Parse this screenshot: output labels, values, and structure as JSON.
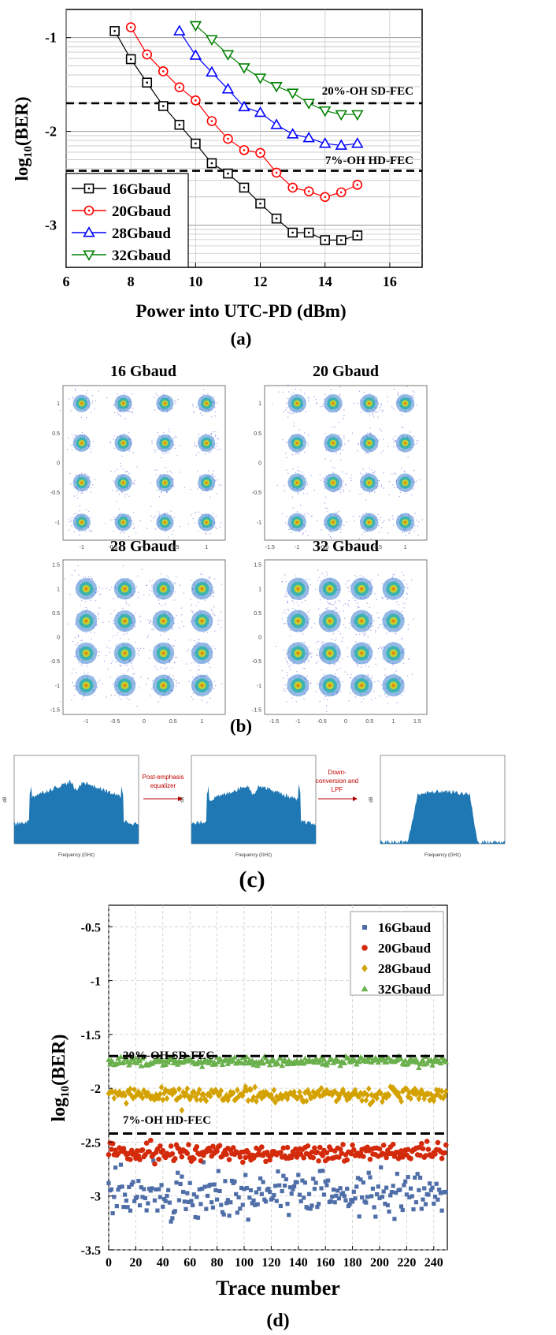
{
  "figure_labels": {
    "a": "(a)",
    "b": "(b)",
    "c": "(c)",
    "d": "(d)"
  },
  "colors": {
    "16Gbaud": "#000000",
    "20Gbaud": "#ff0000",
    "28Gbaud": "#0000ff",
    "32Gbaud": "#008000",
    "d16": "#4f6ea8",
    "d20": "#d42a0c",
    "d28": "#d4a200",
    "d32": "#6ab04c",
    "spectrum": "#1f77b4"
  },
  "chart_data": [
    {
      "id": "a",
      "type": "line",
      "xlabel": "Power into UTC-PD (dBm)",
      "ylabel": "log10(BER)",
      "xlim": [
        6,
        17
      ],
      "ylim": [
        -3.45,
        -0.7
      ],
      "xticks": [
        "6",
        "8",
        "10",
        "12",
        "14",
        "16"
      ],
      "yticks": [
        "-1",
        "-2",
        "-3"
      ],
      "grid": true,
      "legend_position": "bottom-left",
      "thresholds": [
        {
          "label": "20%-OH SD-FEC",
          "y": -1.7
        },
        {
          "label": "7%-OH HD-FEC",
          "y": -2.42
        }
      ],
      "series": [
        {
          "name": "16Gbaud",
          "marker": "square",
          "x": [
            7.5,
            8,
            8.5,
            9,
            9.5,
            10,
            10.5,
            11,
            11.5,
            12,
            12.5,
            13,
            13.5,
            14,
            14.5,
            15
          ],
          "values": [
            -0.93,
            -1.23,
            -1.48,
            -1.73,
            -1.93,
            -2.13,
            -2.34,
            -2.45,
            -2.6,
            -2.77,
            -2.93,
            -3.08,
            -3.08,
            -3.16,
            -3.16,
            -3.11
          ]
        },
        {
          "name": "20Gbaud",
          "marker": "circle",
          "x": [
            8,
            8.5,
            9,
            9.5,
            10,
            10.5,
            11,
            11.5,
            12,
            12.5,
            13,
            13.5,
            14,
            14.5,
            15
          ],
          "values": [
            -0.89,
            -1.18,
            -1.36,
            -1.53,
            -1.67,
            -1.89,
            -2.08,
            -2.2,
            -2.23,
            -2.44,
            -2.6,
            -2.64,
            -2.7,
            -2.65,
            -2.57
          ]
        },
        {
          "name": "28Gbaud",
          "marker": "triangle-up",
          "x": [
            9.5,
            10,
            10.5,
            11,
            11.5,
            12,
            12.5,
            13,
            13.5,
            14,
            14.5,
            15
          ],
          "values": [
            -0.93,
            -1.19,
            -1.37,
            -1.55,
            -1.74,
            -1.8,
            -1.93,
            -2.03,
            -2.07,
            -2.13,
            -2.15,
            -2.13
          ]
        },
        {
          "name": "32Gbaud",
          "marker": "triangle-down",
          "x": [
            10,
            10.5,
            11,
            11.5,
            12,
            12.5,
            13,
            13.5,
            14,
            14.5,
            15
          ],
          "values": [
            -0.87,
            -1.02,
            -1.18,
            -1.32,
            -1.43,
            -1.52,
            -1.59,
            -1.7,
            -1.78,
            -1.82,
            -1.82
          ]
        }
      ]
    },
    {
      "id": "d",
      "type": "scatter",
      "xlabel": "Trace number",
      "ylabel": "log10(BER)",
      "xlim": [
        0,
        250
      ],
      "ylim": [
        -3.5,
        -0.3
      ],
      "xticks": [
        "0",
        "20",
        "40",
        "60",
        "80",
        "100",
        "120",
        "140",
        "160",
        "180",
        "200",
        "220",
        "240"
      ],
      "yticks": [
        "-0.5",
        "-1",
        "-1.5",
        "-2",
        "-2.5",
        "-3",
        "-3.5"
      ],
      "grid": true,
      "legend_position": "top-right",
      "thresholds": [
        {
          "label": "20%-OH SD-FEC",
          "y": -1.7
        },
        {
          "label": "7%-OH HD-FEC",
          "y": -2.42
        }
      ],
      "series": [
        {
          "name": "16Gbaud",
          "marker": "square",
          "mean": -2.98,
          "spread": 0.11,
          "count": 250
        },
        {
          "name": "20Gbaud",
          "marker": "circle",
          "mean": -2.6,
          "spread": 0.04,
          "count": 250
        },
        {
          "name": "28Gbaud",
          "marker": "diamond",
          "mean": -2.06,
          "spread": 0.03,
          "count": 250
        },
        {
          "name": "32Gbaud",
          "marker": "triangle-up",
          "mean": -1.75,
          "spread": 0.02,
          "count": 250
        }
      ]
    }
  ],
  "constellations": {
    "type": "16-QAM constellation",
    "panels": [
      {
        "title": "16 Gbaud",
        "xticks": [
          "-1",
          "-0.5",
          "0",
          "0.5",
          "1"
        ],
        "yticks": [
          "1",
          "0.5",
          "0",
          "-0.5",
          "-1"
        ],
        "spread": 0.09
      },
      {
        "title": "20 Gbaud",
        "xticks": [
          "-1.5",
          "-1",
          "-0.5",
          "0",
          "0.5",
          "1"
        ],
        "yticks": [
          "1",
          "0.5",
          "0",
          "-0.5",
          "-1"
        ],
        "spread": 0.11
      },
      {
        "title": "28 Gbaud",
        "xticks": [
          "-1",
          "-0.5",
          "0",
          "0.5",
          "1"
        ],
        "yticks": [
          "1.5",
          "1",
          "0.5",
          "0",
          "-0.5",
          "-1",
          "-1.5"
        ],
        "spread": 0.12
      },
      {
        "title": "32 Gbaud",
        "xticks": [
          "-1.5",
          "-1",
          "-0.5",
          "0",
          "0.5",
          "1",
          "1.5"
        ],
        "yticks": [
          "1.5",
          "1",
          "0.5",
          "0",
          "-0.5",
          "-1",
          "-1.5"
        ],
        "spread": 0.15
      }
    ]
  },
  "spectra": {
    "xlabel": "Frequency (GHz)",
    "ylabel": "dB",
    "steps": [
      "Post-emphasis equalizer",
      "Down-conversion and LPF"
    ],
    "panels": [
      {
        "shape": "wide-notch"
      },
      {
        "shape": "wide-notch-flat"
      },
      {
        "shape": "narrow"
      }
    ]
  }
}
